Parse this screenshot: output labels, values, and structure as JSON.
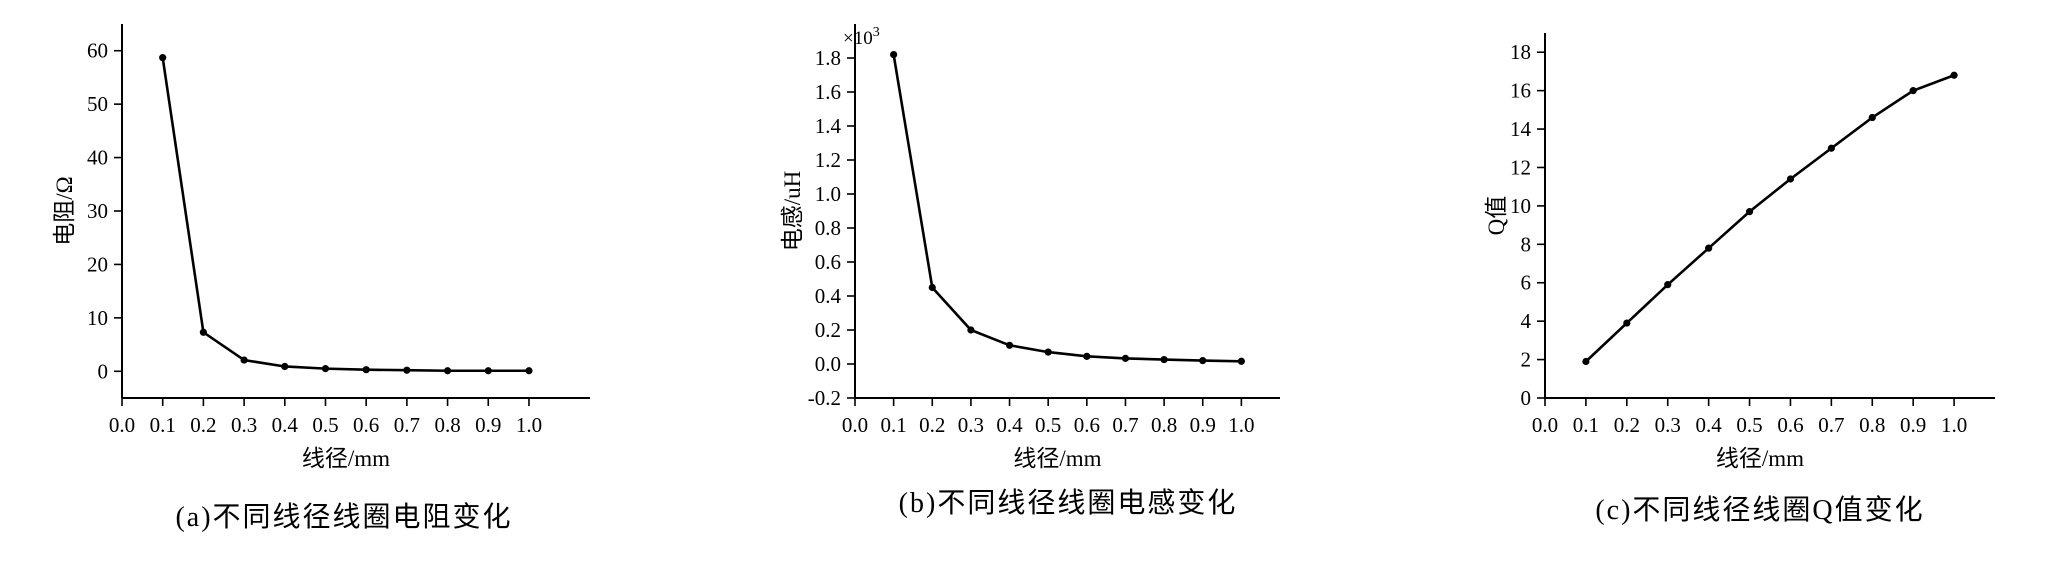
{
  "chart_data": [
    {
      "type": "line",
      "xlabel": "线径/mm",
      "ylabel": "电阻/Ω",
      "caption": "(a)不同线径线圈电阻变化",
      "xlim": [
        0.0,
        1.15
      ],
      "ylim": [
        -5,
        65
      ],
      "xticks": [
        "0.0",
        "0.1",
        "0.2",
        "0.3",
        "0.4",
        "0.5",
        "0.6",
        "0.7",
        "0.8",
        "0.9",
        "1.0"
      ],
      "yticks": [
        "0",
        "10",
        "20",
        "30",
        "40",
        "50",
        "60"
      ],
      "x": [
        0.1,
        0.2,
        0.3,
        0.4,
        0.5,
        0.6,
        0.7,
        0.8,
        0.9,
        1.0
      ],
      "values": [
        58.7,
        7.3,
        2.1,
        0.9,
        0.5,
        0.3,
        0.2,
        0.1,
        0.1,
        0.1
      ]
    },
    {
      "type": "line",
      "xlabel": "线径/mm",
      "ylabel": "电感/uH",
      "scale_label": "×10",
      "scale_exponent": "3",
      "caption": "(b)不同线径线圈电感变化",
      "xlim": [
        0.0,
        1.1
      ],
      "ylim": [
        -0.2,
        2.0
      ],
      "xticks": [
        "0.0",
        "0.1",
        "0.2",
        "0.3",
        "0.4",
        "0.5",
        "0.6",
        "0.7",
        "0.8",
        "0.9",
        "1.0"
      ],
      "yticks": [
        "-0.2",
        "0.0",
        "0.2",
        "0.4",
        "0.6",
        "0.8",
        "1.0",
        "1.2",
        "1.4",
        "1.6",
        "1.8"
      ],
      "x": [
        0.1,
        0.2,
        0.3,
        0.4,
        0.5,
        0.6,
        0.7,
        0.8,
        0.9,
        1.0
      ],
      "values": [
        1.82,
        0.45,
        0.2,
        0.11,
        0.07,
        0.045,
        0.033,
        0.026,
        0.02,
        0.016
      ]
    },
    {
      "type": "line",
      "xlabel": "线径/mm",
      "ylabel": "Q值",
      "caption": "(c)不同线径线圈Q值变化",
      "xlim": [
        0.0,
        1.1
      ],
      "ylim": [
        0,
        19
      ],
      "xticks": [
        "0.0",
        "0.1",
        "0.2",
        "0.3",
        "0.4",
        "0.5",
        "0.6",
        "0.7",
        "0.8",
        "0.9",
        "1.0"
      ],
      "yticks": [
        "0",
        "2",
        "4",
        "6",
        "8",
        "10",
        "12",
        "14",
        "16",
        "18"
      ],
      "x": [
        0.1,
        0.2,
        0.3,
        0.4,
        0.5,
        0.6,
        0.7,
        0.8,
        0.9,
        1.0
      ],
      "values": [
        1.9,
        3.9,
        5.9,
        7.8,
        9.7,
        11.4,
        13.0,
        14.6,
        16.0,
        16.8
      ]
    }
  ]
}
